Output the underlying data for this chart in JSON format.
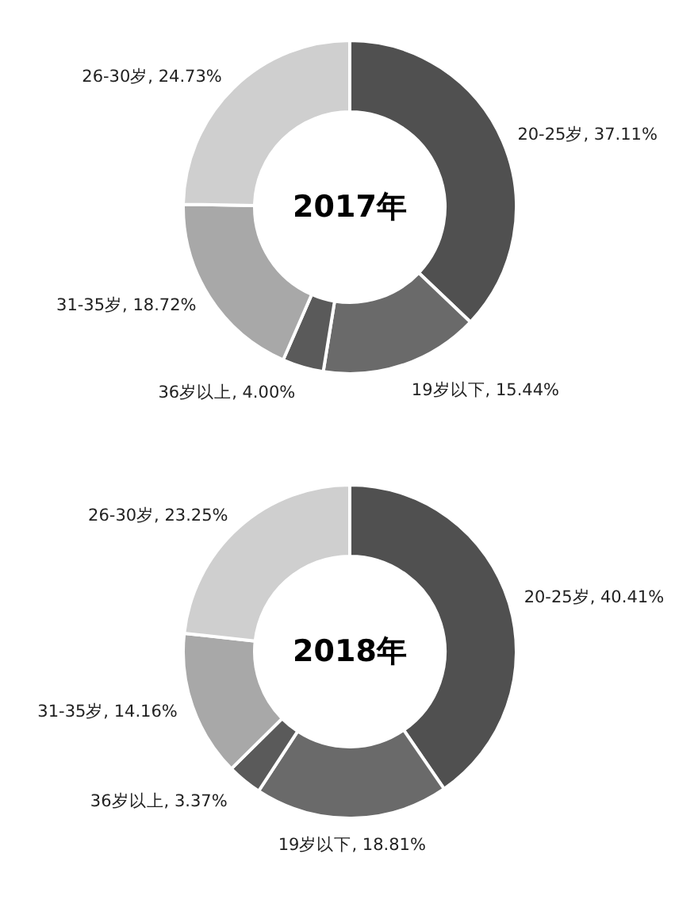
{
  "chart_data": [
    {
      "type": "donut",
      "title": "2017年",
      "categories": [
        "20-25岁",
        "19岁以下",
        "36岁以上",
        "31-35岁",
        "26-30岁"
      ],
      "values": [
        37.11,
        15.44,
        4.0,
        18.72,
        24.73
      ],
      "value_labels": [
        "37.11%",
        "15.44%",
        "4.00%",
        "18.72%",
        "24.73%"
      ],
      "colors": [
        "#505050",
        "#6a6a6a",
        "#5a5a5a",
        "#a8a8a8",
        "#cfcfcf"
      ]
    },
    {
      "type": "donut",
      "title": "2018年",
      "categories": [
        "20-25岁",
        "19岁以下",
        "36岁以上",
        "31-35岁",
        "26-30岁"
      ],
      "values": [
        40.41,
        18.81,
        3.37,
        14.16,
        23.25
      ],
      "value_labels": [
        "40.41%",
        "18.81%",
        "3.37%",
        "14.16%",
        "23.25%"
      ],
      "colors": [
        "#505050",
        "#6a6a6a",
        "#5a5a5a",
        "#a8a8a8",
        "#cfcfcf"
      ]
    }
  ]
}
